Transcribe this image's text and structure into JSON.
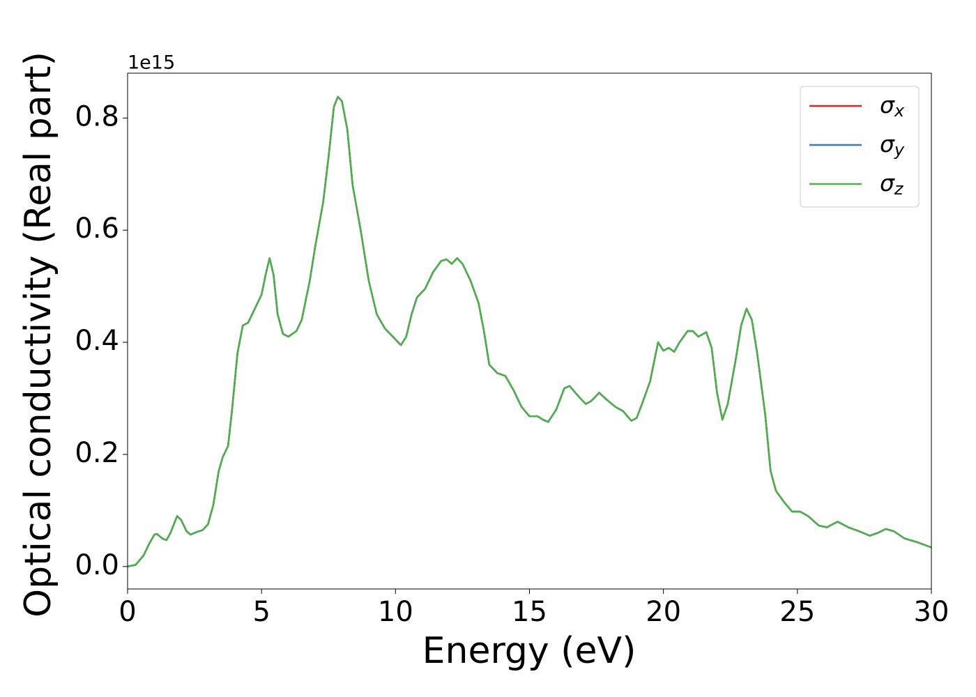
{
  "chart_data": {
    "type": "line",
    "xlabel": "Energy (eV)",
    "ylabel": "Optical conductivity (Real part)",
    "y_offset_label": "1e15",
    "xlim": [
      0,
      30
    ],
    "ylim": [
      -0.04,
      0.88
    ],
    "xticks": [
      0,
      5,
      10,
      15,
      20,
      25,
      30
    ],
    "yticks": [
      {
        "value": 0,
        "label": "0.0"
      },
      0.2,
      0.4,
      0.6,
      0.8
    ],
    "legend": "upper right",
    "x": [
      0,
      0.3,
      0.6,
      0.8,
      1.0,
      1.1,
      1.3,
      1.45,
      1.6,
      1.85,
      2.0,
      2.2,
      2.35,
      2.6,
      2.8,
      3.0,
      3.2,
      3.4,
      3.55,
      3.75,
      3.9,
      4.1,
      4.3,
      4.5,
      4.8,
      5.0,
      5.15,
      5.3,
      5.45,
      5.6,
      5.8,
      6.0,
      6.3,
      6.5,
      6.8,
      7.0,
      7.3,
      7.5,
      7.7,
      7.85,
      8.0,
      8.2,
      8.4,
      8.7,
      9.0,
      9.3,
      9.6,
      9.9,
      10.2,
      10.4,
      10.6,
      10.8,
      11.1,
      11.4,
      11.7,
      11.9,
      12.1,
      12.3,
      12.5,
      12.8,
      13.1,
      13.3,
      13.5,
      13.8,
      14.1,
      14.4,
      14.7,
      15.0,
      15.3,
      15.5,
      15.7,
      16.0,
      16.3,
      16.5,
      16.8,
      17.1,
      17.3,
      17.6,
      17.9,
      18.2,
      18.5,
      18.8,
      19.0,
      19.2,
      19.5,
      19.8,
      20.0,
      20.2,
      20.4,
      20.6,
      20.9,
      21.1,
      21.3,
      21.6,
      21.8,
      22.0,
      22.2,
      22.4,
      22.7,
      22.9,
      23.1,
      23.3,
      23.5,
      23.8,
      24.0,
      24.2,
      24.5,
      24.8,
      25.1,
      25.4,
      25.8,
      26.1,
      26.5,
      26.9,
      27.3,
      27.7,
      28.0,
      28.3,
      28.6,
      29.0,
      29.5,
      30.0
    ],
    "series": [
      {
        "name": "σx",
        "color": "#d62728",
        "values": [
          0.0,
          0.003,
          0.02,
          0.04,
          0.057,
          0.058,
          0.05,
          0.047,
          0.06,
          0.09,
          0.083,
          0.063,
          0.057,
          0.062,
          0.065,
          0.075,
          0.11,
          0.17,
          0.195,
          0.215,
          0.28,
          0.38,
          0.43,
          0.435,
          0.465,
          0.485,
          0.52,
          0.55,
          0.52,
          0.45,
          0.415,
          0.41,
          0.42,
          0.44,
          0.51,
          0.57,
          0.65,
          0.73,
          0.82,
          0.838,
          0.83,
          0.78,
          0.68,
          0.6,
          0.51,
          0.45,
          0.425,
          0.41,
          0.395,
          0.41,
          0.45,
          0.48,
          0.495,
          0.525,
          0.545,
          0.548,
          0.54,
          0.55,
          0.54,
          0.51,
          0.47,
          0.42,
          0.36,
          0.345,
          0.34,
          0.315,
          0.285,
          0.268,
          0.268,
          0.262,
          0.258,
          0.28,
          0.318,
          0.322,
          0.305,
          0.29,
          0.295,
          0.31,
          0.297,
          0.285,
          0.277,
          0.26,
          0.265,
          0.29,
          0.33,
          0.4,
          0.385,
          0.39,
          0.383,
          0.4,
          0.42,
          0.42,
          0.41,
          0.418,
          0.39,
          0.31,
          0.262,
          0.29,
          0.37,
          0.43,
          0.46,
          0.44,
          0.38,
          0.27,
          0.17,
          0.135,
          0.115,
          0.098,
          0.098,
          0.09,
          0.073,
          0.07,
          0.08,
          0.07,
          0.063,
          0.055,
          0.06,
          0.067,
          0.063,
          0.05,
          0.043,
          0.034
        ]
      },
      {
        "name": "σy",
        "color": "#377eb8",
        "values": [
          0.0,
          0.003,
          0.02,
          0.04,
          0.057,
          0.058,
          0.05,
          0.047,
          0.06,
          0.09,
          0.083,
          0.063,
          0.057,
          0.062,
          0.065,
          0.075,
          0.11,
          0.17,
          0.195,
          0.215,
          0.28,
          0.38,
          0.43,
          0.435,
          0.465,
          0.485,
          0.52,
          0.55,
          0.52,
          0.45,
          0.415,
          0.41,
          0.42,
          0.44,
          0.51,
          0.57,
          0.65,
          0.73,
          0.82,
          0.838,
          0.83,
          0.78,
          0.68,
          0.6,
          0.51,
          0.45,
          0.425,
          0.41,
          0.395,
          0.41,
          0.45,
          0.48,
          0.495,
          0.525,
          0.545,
          0.548,
          0.54,
          0.55,
          0.54,
          0.51,
          0.47,
          0.42,
          0.36,
          0.345,
          0.34,
          0.315,
          0.285,
          0.268,
          0.268,
          0.262,
          0.258,
          0.28,
          0.318,
          0.322,
          0.305,
          0.29,
          0.295,
          0.31,
          0.297,
          0.285,
          0.277,
          0.26,
          0.265,
          0.29,
          0.33,
          0.4,
          0.385,
          0.39,
          0.383,
          0.4,
          0.42,
          0.42,
          0.41,
          0.418,
          0.39,
          0.31,
          0.262,
          0.29,
          0.37,
          0.43,
          0.46,
          0.44,
          0.38,
          0.27,
          0.17,
          0.135,
          0.115,
          0.098,
          0.098,
          0.09,
          0.073,
          0.07,
          0.08,
          0.07,
          0.063,
          0.055,
          0.06,
          0.067,
          0.063,
          0.05,
          0.043,
          0.034
        ]
      },
      {
        "name": "σz",
        "color": "#4daf4a",
        "values": [
          0.0,
          0.003,
          0.02,
          0.04,
          0.057,
          0.058,
          0.05,
          0.047,
          0.06,
          0.09,
          0.083,
          0.063,
          0.057,
          0.062,
          0.065,
          0.075,
          0.11,
          0.17,
          0.195,
          0.215,
          0.28,
          0.38,
          0.43,
          0.435,
          0.465,
          0.485,
          0.52,
          0.55,
          0.52,
          0.45,
          0.415,
          0.41,
          0.42,
          0.44,
          0.51,
          0.57,
          0.65,
          0.73,
          0.82,
          0.838,
          0.83,
          0.78,
          0.68,
          0.6,
          0.51,
          0.45,
          0.425,
          0.41,
          0.395,
          0.41,
          0.45,
          0.48,
          0.495,
          0.525,
          0.545,
          0.548,
          0.54,
          0.55,
          0.54,
          0.51,
          0.47,
          0.42,
          0.36,
          0.345,
          0.34,
          0.315,
          0.285,
          0.268,
          0.268,
          0.262,
          0.258,
          0.28,
          0.318,
          0.322,
          0.305,
          0.29,
          0.295,
          0.31,
          0.297,
          0.285,
          0.277,
          0.26,
          0.265,
          0.29,
          0.33,
          0.4,
          0.385,
          0.39,
          0.383,
          0.4,
          0.42,
          0.42,
          0.41,
          0.418,
          0.39,
          0.31,
          0.262,
          0.29,
          0.37,
          0.43,
          0.46,
          0.44,
          0.38,
          0.27,
          0.17,
          0.135,
          0.115,
          0.098,
          0.098,
          0.09,
          0.073,
          0.07,
          0.08,
          0.07,
          0.063,
          0.055,
          0.06,
          0.067,
          0.063,
          0.05,
          0.043,
          0.034
        ]
      }
    ]
  }
}
